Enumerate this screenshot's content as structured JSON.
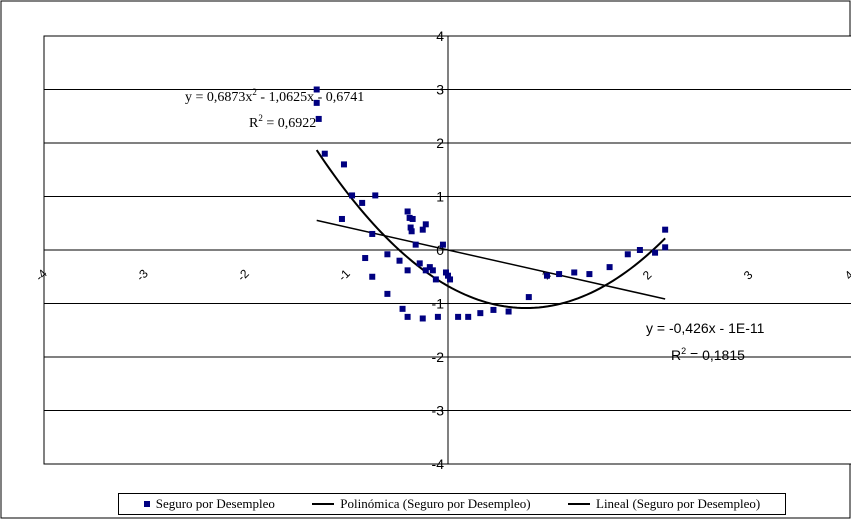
{
  "chart_data": {
    "type": "scatter",
    "title": "",
    "xlabel": "",
    "ylabel": "",
    "xlim": [
      -4,
      4
    ],
    "ylim": [
      -4,
      4
    ],
    "grid": "horizontal",
    "xticks": [
      "-4",
      "-3",
      "-2",
      "-1",
      "0",
      "1",
      "2",
      "3",
      "4"
    ],
    "yticks": [
      "4",
      "3",
      "2",
      "1",
      "0",
      "-1",
      "-2",
      "-3",
      "-4"
    ],
    "series": [
      {
        "name": "Seguro por Desempleo",
        "kind": "scatter",
        "color": "#000080",
        "points": [
          [
            -1.3,
            3.0
          ],
          [
            -1.3,
            2.75
          ],
          [
            -1.28,
            2.45
          ],
          [
            -1.22,
            1.8
          ],
          [
            -1.03,
            1.6
          ],
          [
            -0.95,
            1.02
          ],
          [
            -0.85,
            0.88
          ],
          [
            -1.05,
            0.58
          ],
          [
            -0.72,
            1.02
          ],
          [
            -0.82,
            -0.15
          ],
          [
            -0.75,
            0.3
          ],
          [
            -0.75,
            -0.5
          ],
          [
            -0.6,
            -0.08
          ],
          [
            -0.6,
            -0.82
          ],
          [
            -0.48,
            -0.2
          ],
          [
            -0.45,
            -1.1
          ],
          [
            -0.4,
            -1.25
          ],
          [
            -0.4,
            0.72
          ],
          [
            -0.38,
            0.6
          ],
          [
            -0.37,
            0.42
          ],
          [
            -0.36,
            0.35
          ],
          [
            -0.35,
            0.58
          ],
          [
            -0.32,
            0.1
          ],
          [
            -0.4,
            -0.38
          ],
          [
            -0.25,
            0.38
          ],
          [
            -0.22,
            0.48
          ],
          [
            -0.28,
            -0.25
          ],
          [
            -0.22,
            -0.38
          ],
          [
            -0.18,
            -0.32
          ],
          [
            -0.15,
            -0.38
          ],
          [
            -0.12,
            -0.55
          ],
          [
            -0.05,
            0.1
          ],
          [
            -0.02,
            -0.42
          ],
          [
            0.0,
            -0.48
          ],
          [
            0.02,
            -0.55
          ],
          [
            -0.25,
            -1.28
          ],
          [
            -0.1,
            -1.25
          ],
          [
            0.1,
            -1.25
          ],
          [
            0.2,
            -1.25
          ],
          [
            0.32,
            -1.18
          ],
          [
            0.45,
            -1.12
          ],
          [
            0.6,
            -1.15
          ],
          [
            0.8,
            -0.88
          ],
          [
            0.98,
            -0.48
          ],
          [
            1.1,
            -0.45
          ],
          [
            1.25,
            -0.42
          ],
          [
            1.4,
            -0.45
          ],
          [
            1.6,
            -0.32
          ],
          [
            1.78,
            -0.08
          ],
          [
            1.9,
            0.0
          ],
          [
            2.05,
            -0.05
          ],
          [
            2.15,
            0.38
          ],
          [
            2.15,
            0.05
          ]
        ]
      },
      {
        "name": "Polinómica (Seguro por Desempleo)",
        "kind": "poly2",
        "color": "#000000",
        "coefficients": [
          0.6873,
          -1.0625,
          -0.6741
        ],
        "range": [
          -1.3,
          2.15
        ]
      },
      {
        "name": "Lineal (Seguro por Desempleo)",
        "kind": "linear",
        "color": "#000000",
        "coefficients": [
          -0.426,
          0
        ],
        "range": [
          -1.3,
          2.15
        ]
      }
    ],
    "annotations": {
      "poly_eq": "y = 0,6873x",
      "poly_eq_sup": "2",
      "poly_eq_rest": " - 1,0625x - 0,6741",
      "poly_r2_label": "R",
      "poly_r2_sup": "2",
      "poly_r2_value": " = 0,6922",
      "lin_eq": "y = -0,426x - 1E-11",
      "lin_r2_label": "R",
      "lin_r2_sup": "2",
      "lin_r2_value": " = 0,1815"
    }
  },
  "legend": {
    "placement": "bottom",
    "items": [
      {
        "label": "Seguro por Desempleo",
        "symbol": "square"
      },
      {
        "label": "Polinómica (Seguro por Desempleo)",
        "symbol": "line"
      },
      {
        "label": "Lineal (Seguro por Desempleo)",
        "symbol": "line"
      }
    ]
  }
}
